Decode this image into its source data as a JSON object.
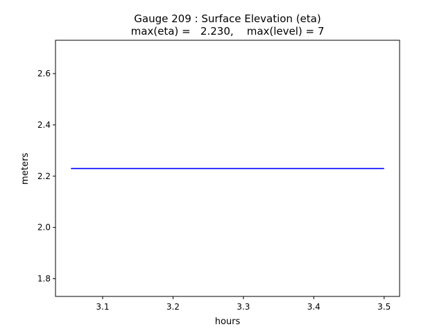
{
  "chart_data": {
    "type": "line",
    "title_line1": "Gauge 209 : Surface Elevation (eta)",
    "title_line2": "max(eta) =   2.230,    max(level) = 7",
    "xlabel": "hours",
    "ylabel": "meters",
    "xlim": [
      3.033,
      3.522
    ],
    "ylim": [
      1.731,
      2.73
    ],
    "x_ticks": [
      3.1,
      3.2,
      3.3,
      3.4,
      3.5
    ],
    "x_tick_labels": [
      "3.1",
      "3.2",
      "3.3",
      "3.4",
      "3.5"
    ],
    "y_ticks": [
      1.8,
      2.0,
      2.2,
      2.4,
      2.6
    ],
    "y_tick_labels": [
      "1.8",
      "2.0",
      "2.2",
      "2.4",
      "2.6"
    ],
    "grid": false,
    "legend": "none",
    "series": [
      {
        "color": "#0000ff",
        "x": [
          3.055,
          3.1,
          3.2,
          3.3,
          3.4,
          3.5
        ],
        "y": [
          2.23,
          2.23,
          2.23,
          2.23,
          2.23,
          2.23
        ]
      }
    ]
  }
}
